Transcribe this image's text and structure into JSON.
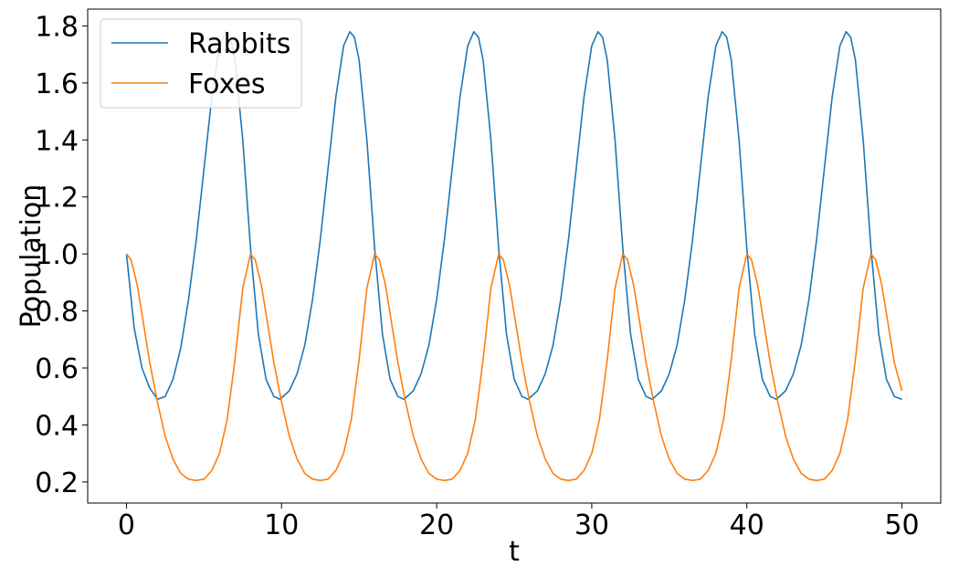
{
  "chart_data": {
    "type": "line",
    "xlabel": "t",
    "ylabel": "Population",
    "xlim": [
      -2.5,
      52.5
    ],
    "ylim": [
      0.126,
      1.859
    ],
    "xticks": [
      0,
      10,
      20,
      30,
      40,
      50
    ],
    "xtick_labels": [
      "0",
      "10",
      "20",
      "30",
      "40",
      "50"
    ],
    "yticks": [
      0.2,
      0.4,
      0.6,
      0.8,
      1.0,
      1.2,
      1.4,
      1.6,
      1.8
    ],
    "ytick_labels": [
      "0.2",
      "0.4",
      "0.6",
      "0.8",
      "1.0",
      "1.2",
      "1.4",
      "1.6",
      "1.8"
    ],
    "grid": false,
    "legend": "top-left",
    "series": [
      {
        "name": "Rabbits",
        "color": "#1f77b4",
        "x": [
          0,
          0.5,
          1,
          1.5,
          2,
          2.5,
          3,
          3.5,
          4,
          4.5,
          5,
          5.5,
          6,
          6.4,
          6.7,
          7,
          7.5,
          8,
          8.5,
          9,
          9.5,
          9.9,
          10.5,
          11,
          11.5,
          12,
          12.5,
          13,
          13.5,
          14,
          14.4,
          14.7,
          15,
          15.5,
          16,
          16.5,
          17,
          17.5,
          17.9,
          18.5,
          19,
          19.5,
          20,
          20.5,
          21,
          21.5,
          22,
          22.4,
          22.7,
          23,
          23.5,
          24,
          24.5,
          25,
          25.5,
          25.9,
          26.5,
          27,
          27.5,
          28,
          28.5,
          29,
          29.5,
          30,
          30.4,
          30.7,
          31,
          31.5,
          32,
          32.5,
          33,
          33.5,
          33.9,
          34.5,
          35,
          35.5,
          36,
          36.5,
          37,
          37.5,
          38,
          38.4,
          38.7,
          39,
          39.5,
          40,
          40.5,
          41,
          41.5,
          41.9,
          42.5,
          43,
          43.5,
          44,
          44.5,
          45,
          45.5,
          46,
          46.4,
          46.7,
          47,
          47.5,
          48,
          48.5,
          49,
          49.5,
          50
        ],
        "y": [
          1.0,
          0.74,
          0.6,
          0.53,
          0.49,
          0.5,
          0.56,
          0.67,
          0.84,
          1.05,
          1.3,
          1.55,
          1.73,
          1.78,
          1.76,
          1.68,
          1.4,
          1.02,
          0.72,
          0.56,
          0.5,
          0.49,
          0.52,
          0.58,
          0.68,
          0.84,
          1.05,
          1.3,
          1.55,
          1.73,
          1.78,
          1.76,
          1.68,
          1.4,
          1.02,
          0.72,
          0.56,
          0.5,
          0.49,
          0.52,
          0.58,
          0.68,
          0.84,
          1.05,
          1.3,
          1.55,
          1.73,
          1.78,
          1.76,
          1.68,
          1.4,
          1.02,
          0.72,
          0.56,
          0.5,
          0.49,
          0.52,
          0.58,
          0.68,
          0.84,
          1.05,
          1.3,
          1.55,
          1.73,
          1.78,
          1.76,
          1.68,
          1.4,
          1.02,
          0.72,
          0.56,
          0.5,
          0.49,
          0.52,
          0.58,
          0.68,
          0.84,
          1.05,
          1.3,
          1.55,
          1.73,
          1.78,
          1.76,
          1.68,
          1.4,
          1.02,
          0.72,
          0.56,
          0.5,
          0.49,
          0.52,
          0.58,
          0.68,
          0.84,
          1.05,
          1.3,
          1.55,
          1.73,
          1.78,
          1.76,
          1.68,
          1.4,
          1.02,
          0.72,
          0.56,
          0.5,
          0.49
        ]
      },
      {
        "name": "Foxes",
        "color": "#ff7f0e",
        "x": [
          0,
          0.3,
          0.7,
          1,
          1.5,
          2,
          2.5,
          3,
          3.5,
          4,
          4.5,
          5,
          5.5,
          6,
          6.5,
          7,
          7.5,
          8,
          8.3,
          8.7,
          9,
          9.5,
          10,
          10.5,
          11,
          11.5,
          12,
          12.5,
          13,
          13.5,
          14,
          14.5,
          15,
          15.5,
          16,
          16.3,
          16.7,
          17,
          17.5,
          18,
          18.5,
          19,
          19.5,
          20,
          20.5,
          21,
          21.5,
          22,
          22.5,
          23,
          23.5,
          24,
          24.3,
          24.7,
          25,
          25.5,
          26,
          26.5,
          27,
          27.5,
          28,
          28.5,
          29,
          29.5,
          30,
          30.5,
          31,
          31.5,
          32,
          32.3,
          32.7,
          33,
          33.5,
          34,
          34.5,
          35,
          35.5,
          36,
          36.5,
          37,
          37.5,
          38,
          38.5,
          39,
          39.5,
          40,
          40.3,
          40.7,
          41,
          41.5,
          42,
          42.5,
          43,
          43.5,
          44,
          44.5,
          45,
          45.5,
          46,
          46.5,
          47,
          47.5,
          48,
          48.3,
          48.7,
          49,
          49.5,
          50
        ],
        "y": [
          1.0,
          0.98,
          0.89,
          0.79,
          0.62,
          0.48,
          0.36,
          0.28,
          0.23,
          0.21,
          0.205,
          0.21,
          0.24,
          0.3,
          0.42,
          0.63,
          0.88,
          1.0,
          0.98,
          0.89,
          0.79,
          0.62,
          0.48,
          0.36,
          0.28,
          0.23,
          0.21,
          0.205,
          0.21,
          0.24,
          0.3,
          0.42,
          0.63,
          0.88,
          1.0,
          0.98,
          0.89,
          0.79,
          0.62,
          0.48,
          0.36,
          0.28,
          0.23,
          0.21,
          0.205,
          0.21,
          0.24,
          0.3,
          0.42,
          0.63,
          0.88,
          1.0,
          0.98,
          0.89,
          0.79,
          0.62,
          0.48,
          0.36,
          0.28,
          0.23,
          0.21,
          0.205,
          0.21,
          0.24,
          0.3,
          0.42,
          0.63,
          0.88,
          1.0,
          0.98,
          0.89,
          0.79,
          0.62,
          0.48,
          0.36,
          0.28,
          0.23,
          0.21,
          0.205,
          0.21,
          0.24,
          0.3,
          0.42,
          0.63,
          0.88,
          1.0,
          0.98,
          0.89,
          0.79,
          0.62,
          0.48,
          0.36,
          0.28,
          0.23,
          0.21,
          0.205,
          0.21,
          0.24,
          0.3,
          0.42,
          0.63,
          0.88,
          1.0,
          0.98,
          0.89,
          0.79,
          0.62,
          0.52
        ]
      }
    ]
  }
}
